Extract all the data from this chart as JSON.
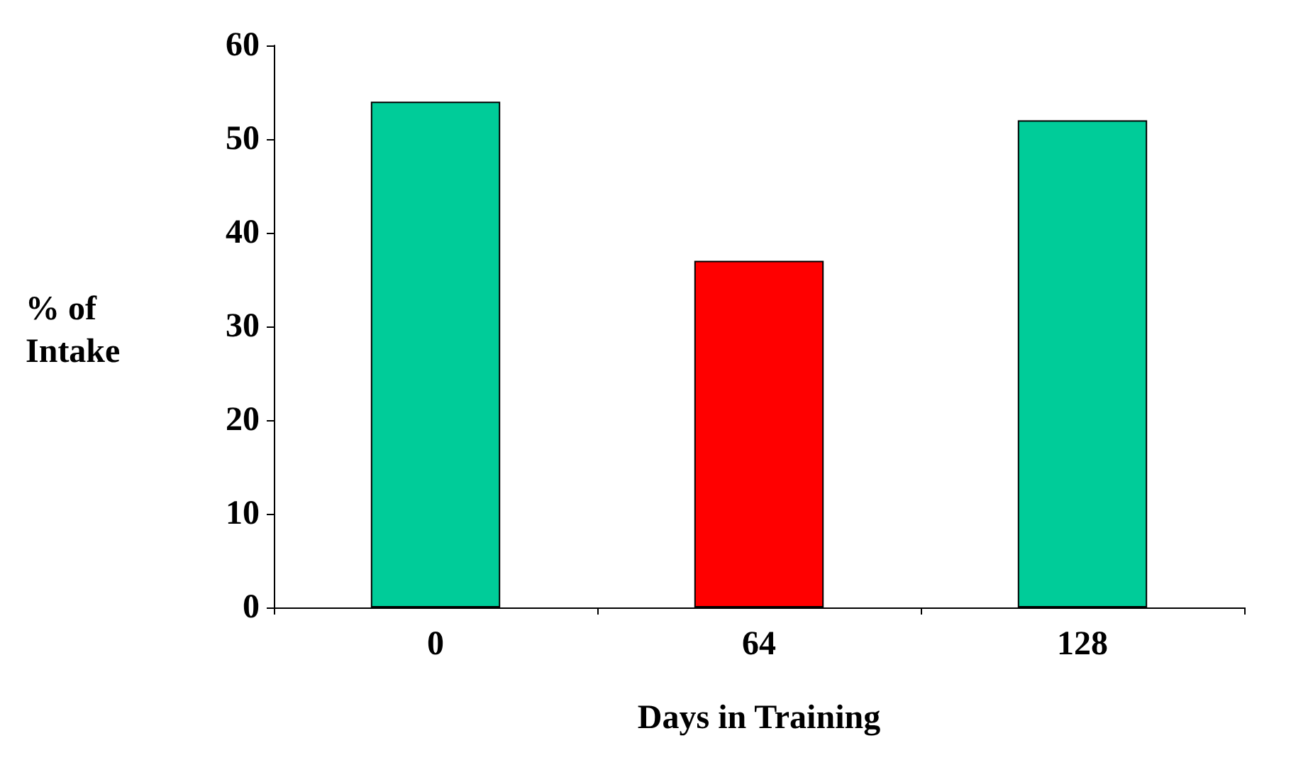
{
  "chart_data": {
    "type": "bar",
    "categories": [
      "0",
      "64",
      "128"
    ],
    "values": [
      54,
      37,
      52
    ],
    "colors": [
      "#00cc99",
      "#ff0000",
      "#00cc99"
    ],
    "xlabel": "Days in Training",
    "ylabel": "% of Intake",
    "ylim": [
      0,
      60
    ],
    "yticks": [
      0,
      10,
      20,
      30,
      40,
      50,
      60
    ],
    "grid": false
  }
}
